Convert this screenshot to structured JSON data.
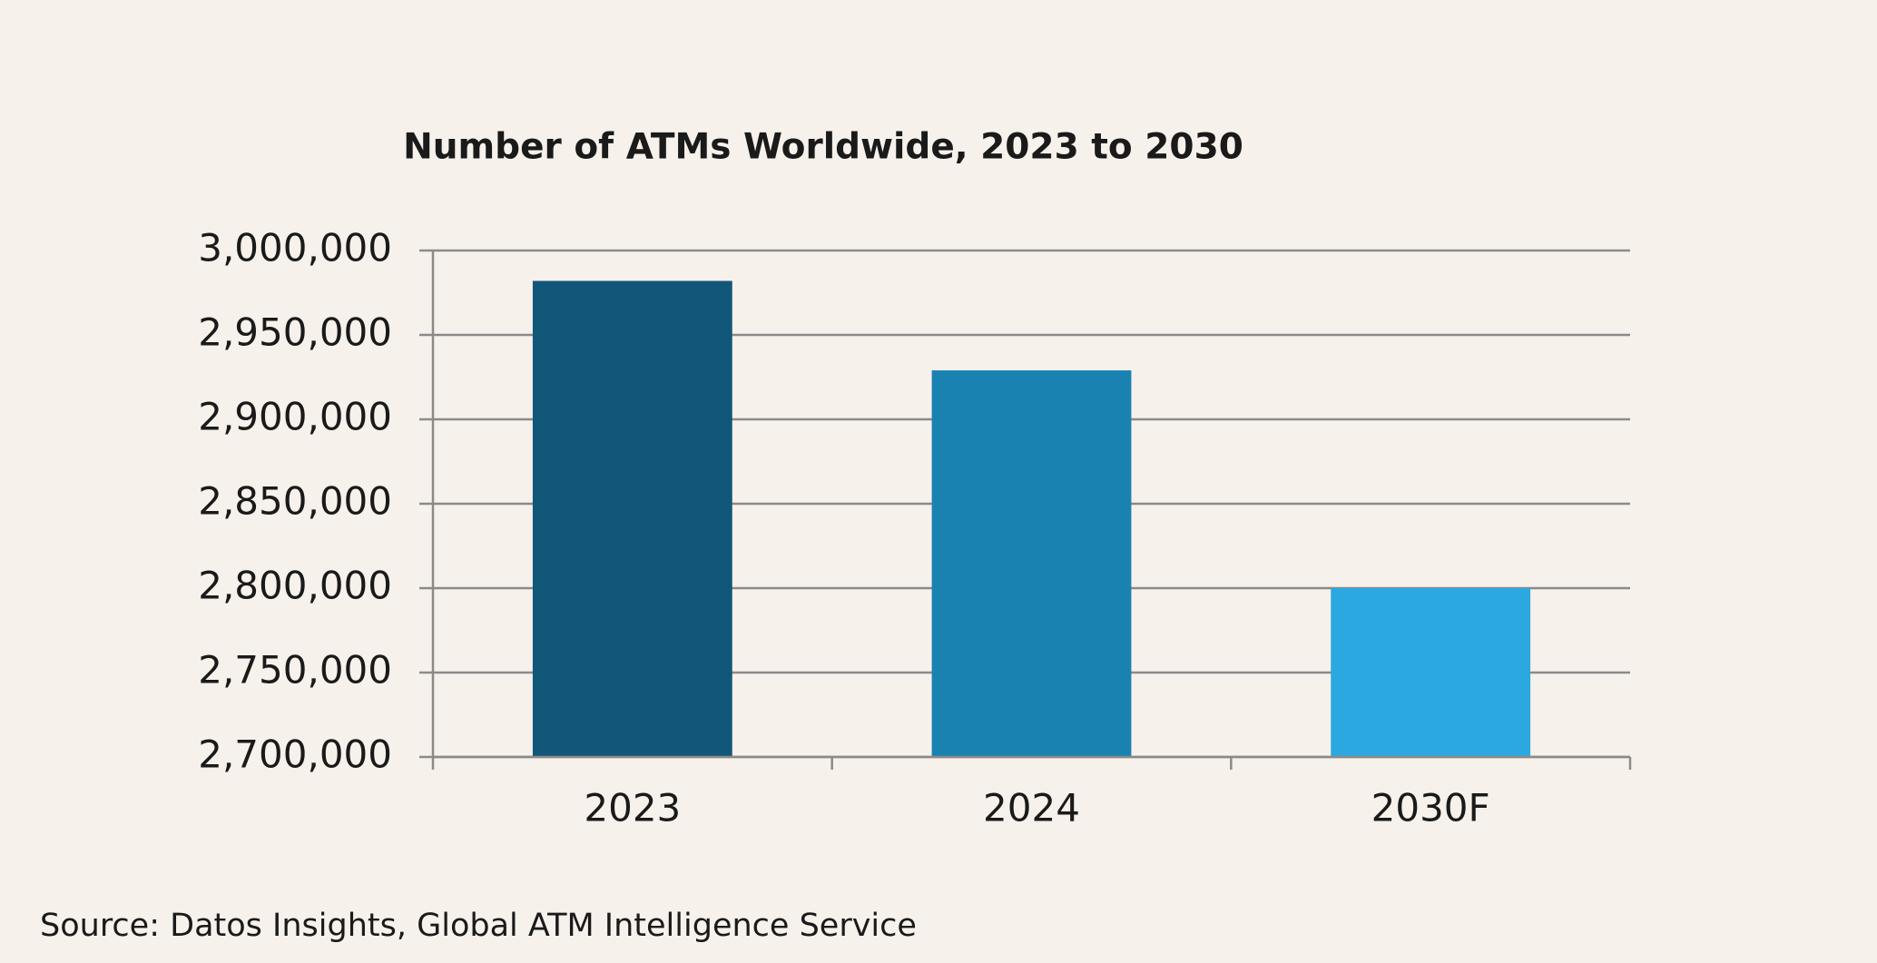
{
  "chart_data": {
    "type": "bar",
    "title": "Number of ATMs Worldwide, 2023 to 2030",
    "categories": [
      "2023",
      "2024",
      "2030F"
    ],
    "values": [
      2982000,
      2929000,
      2800000
    ],
    "colors": [
      "#12577a",
      "#1a82b0",
      "#2ca8e0"
    ],
    "ylim": [
      2700000,
      3000000
    ],
    "yticks": [
      {
        "value": 2700000,
        "label": "2,700,000"
      },
      {
        "value": 2750000,
        "label": "2,750,000"
      },
      {
        "value": 2800000,
        "label": "2,800,000"
      },
      {
        "value": 2850000,
        "label": "2,850,000"
      },
      {
        "value": 2900000,
        "label": "2,900,000"
      },
      {
        "value": 2950000,
        "label": "2,950,000"
      },
      {
        "value": 3000000,
        "label": "3,000,000"
      }
    ],
    "grid": true,
    "source": "Source: Datos Insights, Global ATM Intelligence Service"
  }
}
